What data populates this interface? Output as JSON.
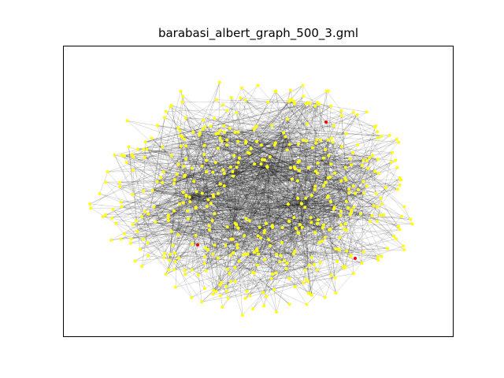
{
  "title": "barabasi_albert_graph_500_3.gml",
  "colors": {
    "node_default": "#ffff1a",
    "node_highlight": "#ff0000",
    "edge": "#000000",
    "frame": "#000000",
    "background": "#ffffff"
  },
  "graph": {
    "model": "barabasi-albert",
    "node_count": 500,
    "edges_per_new_node": 3,
    "highlighted_node_count": 3
  }
}
